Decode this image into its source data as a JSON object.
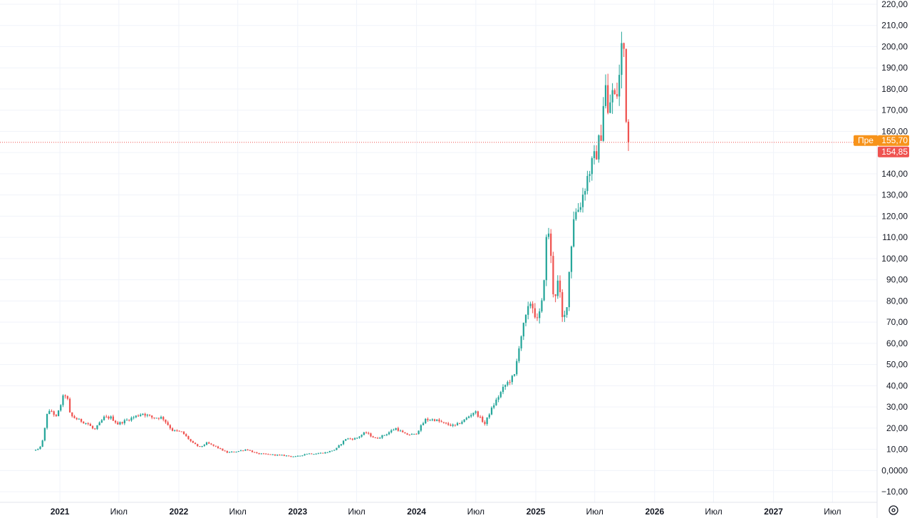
{
  "chart_data": {
    "type": "candlestick",
    "title": "",
    "xlabel": "",
    "ylabel": "",
    "ylim": [
      -15,
      222
    ],
    "y_ticks": [
      {
        "value": -10,
        "label": "−10,00"
      },
      {
        "value": 0,
        "label": "0,0000"
      },
      {
        "value": 10,
        "label": "10,00"
      },
      {
        "value": 20,
        "label": "20,00"
      },
      {
        "value": 30,
        "label": "30,00"
      },
      {
        "value": 40,
        "label": "40,00"
      },
      {
        "value": 50,
        "label": "50,00"
      },
      {
        "value": 60,
        "label": "60,00"
      },
      {
        "value": 70,
        "label": "70,00"
      },
      {
        "value": 80,
        "label": "80,00"
      },
      {
        "value": 90,
        "label": "90,00"
      },
      {
        "value": 100,
        "label": "100,00"
      },
      {
        "value": 110,
        "label": "110,00"
      },
      {
        "value": 120,
        "label": "120,00"
      },
      {
        "value": 130,
        "label": "130,00"
      },
      {
        "value": 140,
        "label": "140,00"
      },
      {
        "value": 150,
        "label": "150,00"
      },
      {
        "value": 160,
        "label": "160,00"
      },
      {
        "value": 170,
        "label": "170,00"
      },
      {
        "value": 180,
        "label": "180,00"
      },
      {
        "value": 190,
        "label": "190,00"
      },
      {
        "value": 200,
        "label": "200,00"
      },
      {
        "value": 210,
        "label": "210,00"
      },
      {
        "value": 220,
        "label": "220,00"
      }
    ],
    "x_range": [
      "2020-07-01",
      "2027-11-15"
    ],
    "x_ticks": [
      {
        "date": "2021-01-01",
        "label": "2021",
        "bold": true
      },
      {
        "date": "2021-07-01",
        "label": "Июл",
        "bold": false
      },
      {
        "date": "2022-01-01",
        "label": "2022",
        "bold": true
      },
      {
        "date": "2022-07-01",
        "label": "Июл",
        "bold": false
      },
      {
        "date": "2023-01-01",
        "label": "2023",
        "bold": true
      },
      {
        "date": "2023-07-01",
        "label": "Июл",
        "bold": false
      },
      {
        "date": "2024-01-01",
        "label": "2024",
        "bold": true
      },
      {
        "date": "2024-07-01",
        "label": "Июл",
        "bold": false
      },
      {
        "date": "2025-01-01",
        "label": "2025",
        "bold": true
      },
      {
        "date": "2025-07-01",
        "label": "Июл",
        "bold": false
      },
      {
        "date": "2026-01-01",
        "label": "2026",
        "bold": true
      },
      {
        "date": "2026-07-01",
        "label": "Июл",
        "bold": false
      },
      {
        "date": "2027-01-01",
        "label": "2027",
        "bold": true
      },
      {
        "date": "2027-07-01",
        "label": "Июл",
        "bold": false
      }
    ],
    "price_path": [
      [
        "2020-10-15",
        9.5
      ],
      [
        "2020-11-01",
        10
      ],
      [
        "2020-11-15",
        15
      ],
      [
        "2020-11-25",
        27
      ],
      [
        "2020-12-10",
        28
      ],
      [
        "2020-12-25",
        25
      ],
      [
        "2021-01-15",
        35
      ],
      [
        "2021-01-25",
        36
      ],
      [
        "2021-02-05",
        26
      ],
      [
        "2021-03-01",
        24
      ],
      [
        "2021-04-01",
        22
      ],
      [
        "2021-04-20",
        19
      ],
      [
        "2021-05-20",
        25
      ],
      [
        "2021-06-10",
        25
      ],
      [
        "2021-07-01",
        22
      ],
      [
        "2021-08-01",
        24
      ],
      [
        "2021-09-15",
        27
      ],
      [
        "2021-10-15",
        25
      ],
      [
        "2021-11-15",
        25
      ],
      [
        "2021-12-15",
        19
      ],
      [
        "2022-01-15",
        18
      ],
      [
        "2022-02-15",
        13
      ],
      [
        "2022-03-10",
        11
      ],
      [
        "2022-04-01",
        13
      ],
      [
        "2022-05-01",
        11
      ],
      [
        "2022-06-01",
        8.5
      ],
      [
        "2022-07-01",
        9
      ],
      [
        "2022-08-01",
        10
      ],
      [
        "2022-09-01",
        8
      ],
      [
        "2022-10-15",
        7.5
      ],
      [
        "2022-12-01",
        7
      ],
      [
        "2023-01-01",
        6.5
      ],
      [
        "2023-02-01",
        8
      ],
      [
        "2023-03-01",
        8
      ],
      [
        "2023-04-01",
        8.5
      ],
      [
        "2023-05-01",
        10
      ],
      [
        "2023-06-01",
        15
      ],
      [
        "2023-07-01",
        15
      ],
      [
        "2023-08-01",
        18
      ],
      [
        "2023-09-01",
        15
      ],
      [
        "2023-10-01",
        17
      ],
      [
        "2023-11-01",
        20
      ],
      [
        "2023-12-01",
        17
      ],
      [
        "2024-01-01",
        17
      ],
      [
        "2024-02-01",
        24
      ],
      [
        "2024-03-01",
        24
      ],
      [
        "2024-04-01",
        22
      ],
      [
        "2024-05-01",
        21
      ],
      [
        "2024-06-01",
        24
      ],
      [
        "2024-07-01",
        28
      ],
      [
        "2024-08-01",
        22
      ],
      [
        "2024-08-15",
        27
      ],
      [
        "2024-09-01",
        32
      ],
      [
        "2024-10-01",
        40
      ],
      [
        "2024-11-01",
        45
      ],
      [
        "2024-11-15",
        60
      ],
      [
        "2024-12-01",
        70
      ],
      [
        "2024-12-20",
        80
      ],
      [
        "2025-01-10",
        70
      ],
      [
        "2025-01-25",
        80
      ],
      [
        "2025-02-10",
        118
      ],
      [
        "2025-02-20",
        100
      ],
      [
        "2025-03-01",
        80
      ],
      [
        "2025-03-15",
        90
      ],
      [
        "2025-03-28",
        70
      ],
      [
        "2025-04-08",
        75
      ],
      [
        "2025-04-20",
        100
      ],
      [
        "2025-05-01",
        120
      ],
      [
        "2025-05-20",
        125
      ],
      [
        "2025-06-15",
        140
      ],
      [
        "2025-07-10",
        150
      ],
      [
        "2025-07-25",
        160
      ],
      [
        "2025-08-05",
        185
      ],
      [
        "2025-08-15",
        165
      ],
      [
        "2025-08-25",
        180
      ],
      [
        "2025-09-05",
        175
      ],
      [
        "2025-09-15",
        180
      ],
      [
        "2025-09-25",
        200
      ],
      [
        "2025-10-01",
        205
      ],
      [
        "2025-10-05",
        180
      ],
      [
        "2025-10-10",
        165
      ],
      [
        "2025-10-15",
        155
      ]
    ],
    "colors": {
      "up": "#26a69a",
      "down": "#ef5350",
      "grid": "#f0f3fa",
      "axis": "#e0e3eb",
      "last_line": "#ef5350"
    },
    "current_price_line": 154.85,
    "badges": [
      {
        "label": "Пре",
        "value": 155.7,
        "value_label": "155,70",
        "color": "#f7931a"
      },
      {
        "label": "",
        "value": 154.85,
        "value_label": "154,85",
        "color": "#ef5350"
      }
    ]
  },
  "settings_icon": "gear-icon"
}
